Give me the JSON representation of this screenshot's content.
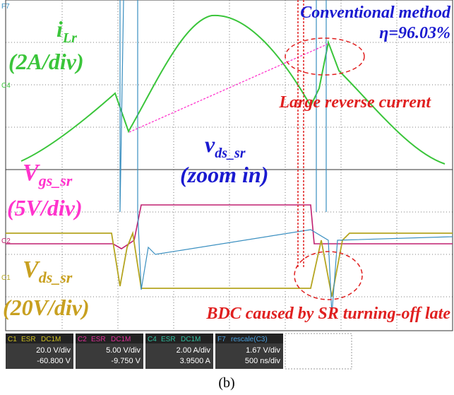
{
  "annotations": {
    "method": "Conventional method",
    "efficiency": "η=96.03%",
    "ilr": {
      "main": "i",
      "sub": "Lr"
    },
    "ilr_scale": "(2A/div)",
    "reverse": "Large reverse current",
    "vds_zoom": {
      "main": "v",
      "sub": "ds_sr"
    },
    "zoom": "(zoom in)",
    "vgs": {
      "main": "V",
      "sub": "gs_sr"
    },
    "vgs_scale": "(5V/div)",
    "vds": {
      "main": "V",
      "sub": "ds_sr"
    },
    "vds_scale": "(20V/div)",
    "bdc": "BDC caused by SR turning-off late"
  },
  "markers": [
    "F7",
    "C4",
    "C2",
    "C1"
  ],
  "channels": [
    {
      "id": "C1",
      "tags": [
        "ESR",
        "DC1M"
      ],
      "scale": "20.0 V/div",
      "offset": "-60.800 V"
    },
    {
      "id": "C2",
      "tags": [
        "ESR",
        "DC1M"
      ],
      "scale": "5.00 V/div",
      "offset": "-9.750 V"
    },
    {
      "id": "C4",
      "tags": [
        "ESR",
        "DC1M"
      ],
      "scale": "2.00 A/div",
      "offset": "3.9500 A"
    },
    {
      "id": "F7",
      "tags": [
        "rescale(C3)"
      ],
      "scale": "1.67 V/div",
      "offset": "500 ns/div"
    }
  ],
  "caption": "(b)"
}
